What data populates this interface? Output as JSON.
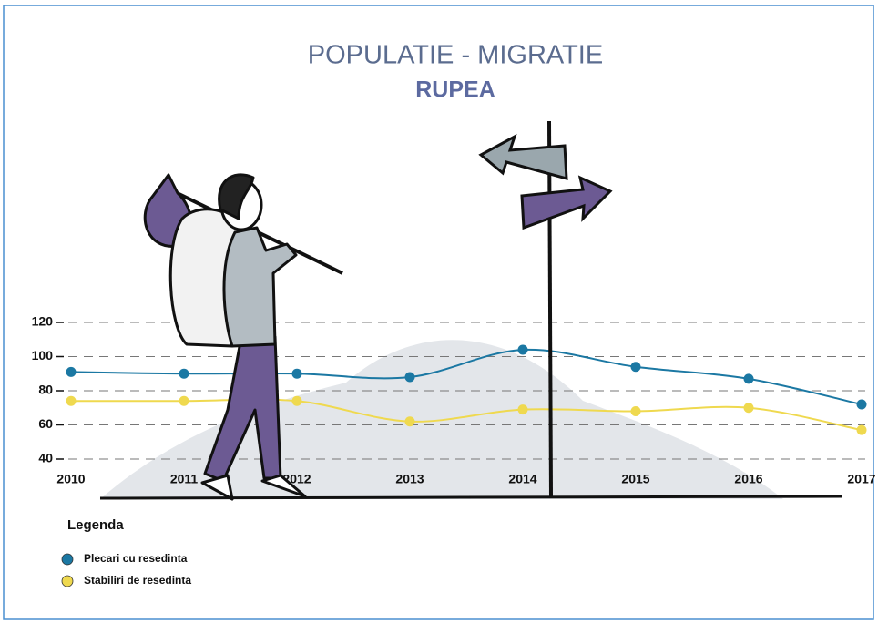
{
  "chart_data": {
    "type": "line",
    "title": "POPULATIE - MIGRATIE",
    "subtitle": "RUPEA",
    "categories": [
      "2010",
      "2011",
      "2012",
      "2013",
      "2014",
      "2015",
      "2016",
      "2017"
    ],
    "series": [
      {
        "name": "Plecari cu resedinta",
        "color": "#1b78a3",
        "values": [
          91,
          90,
          90,
          88,
          104,
          94,
          87,
          72
        ]
      },
      {
        "name": "Stabiliri de resedinta",
        "color": "#efd94f",
        "values": [
          74,
          74,
          74,
          62,
          69,
          68,
          70,
          57
        ]
      }
    ],
    "ylim": [
      40,
      120
    ],
    "yticks": [
      40,
      60,
      80,
      100,
      120
    ],
    "grid": true,
    "legend_title": "Legenda"
  }
}
